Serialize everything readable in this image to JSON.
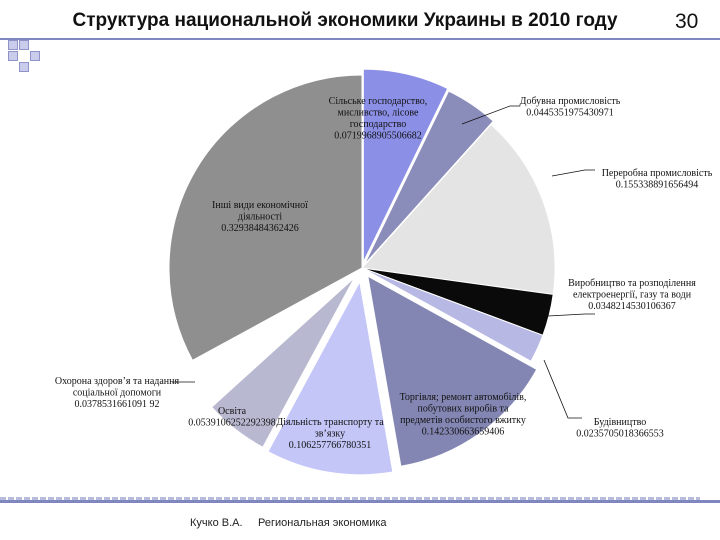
{
  "slide": {
    "title": "Структура национальной экономики Украины в 2010 году",
    "page_number": "30",
    "footer_author": "Кучко В.А.",
    "footer_subject": "Региональная экономика"
  },
  "chart_data": {
    "type": "pie",
    "title": "Структура национальной экономики Украины в 2010 году",
    "slices": [
      {
        "name": "Сільське господарство, мисливство, лісове господарство",
        "label_lines": [
          "Сільське господарство,",
          "мисливство, лісове",
          "господарство",
          "0.0719968905506682"
        ],
        "value": 0.0719968905506682,
        "color": "#8b8fe6"
      },
      {
        "name": "Добувна промисловість",
        "label_lines": [
          "Добувна промисловість",
          "0.0445351975430971"
        ],
        "value": 0.0445351975430971,
        "color": "#8a8cba"
      },
      {
        "name": "Переробна промисловість",
        "label_lines": [
          "Переробна промисловість",
          "0.155338891656494"
        ],
        "value": 0.155338891656494,
        "color": "#e4e4e4"
      },
      {
        "name": "Виробництво та розподілення електроенергії, газу та води",
        "label_lines": [
          "Виробництво та розподілення",
          "електроенергії, газу та води",
          "0.0348214530106367"
        ],
        "value": 0.0348214530106367,
        "color": "#0a0a0a"
      },
      {
        "name": "Будівництво",
        "label_lines": [
          "Будівництво",
          "0.0235705018366553"
        ],
        "value": 0.0235705018366553,
        "color": "#b7b9e4"
      },
      {
        "name": "Торгівля; ремонт автомобілів, побутових виробів та предметів особистого вжитку",
        "label_lines": [
          "Торгівля; ремонт автомобілів,",
          "побутових виробів та",
          "предметів особистого вжитку",
          "0.142330663659406"
        ],
        "value": 0.142330663659406,
        "color": "#8386b2"
      },
      {
        "name": "Діяльність транспорту та зв'язку",
        "label_lines": [
          "Діяльність транспорту та",
          "зв’язку",
          "0.106257766780351"
        ],
        "value": 0.106257766780351,
        "color": "#c4c6f8"
      },
      {
        "name": "Освіта",
        "label_lines": [
          "Освіта",
          "0.0539106252292398"
        ],
        "value": 0.0539106252292398,
        "color": "#b8b8d0"
      },
      {
        "name": "Охорона здоров'я та надання соціальної допомоги",
        "label_lines": [
          "Охорона здоров’я та надання",
          "соціальної допомоги",
          "0.0378531661091 92"
        ],
        "value": 0.037853166109192,
        "color": "#ffffff"
      },
      {
        "name": "Інші види економічної діяльності",
        "label_lines": [
          "Інші види економічної",
          "діяльності",
          "0.32938484362426"
        ],
        "value": 0.32938484362426,
        "color": "#8f8f8f"
      }
    ]
  }
}
